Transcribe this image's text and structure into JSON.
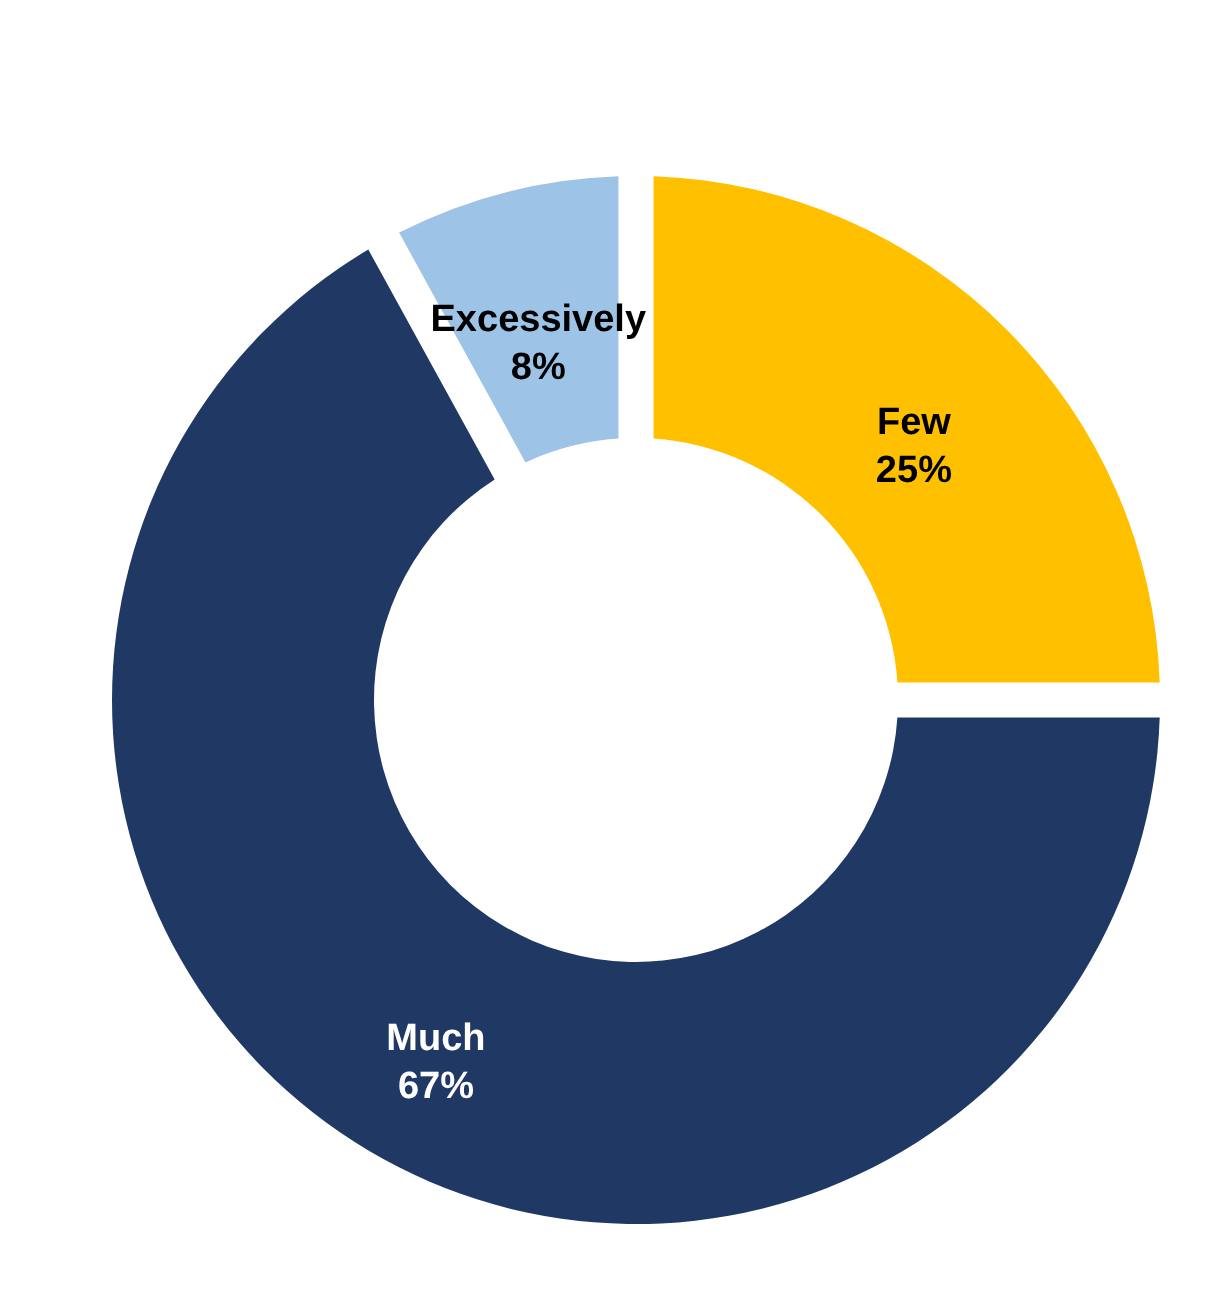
{
  "chart_data": {
    "type": "donut",
    "categories": [
      "Few",
      "Much",
      "Excessively"
    ],
    "values": [
      25,
      67,
      8
    ],
    "colors": [
      "#ffc000",
      "#1f3864",
      "#9dc3e6"
    ],
    "value_labels": [
      "25%",
      "67%",
      "8%"
    ]
  }
}
